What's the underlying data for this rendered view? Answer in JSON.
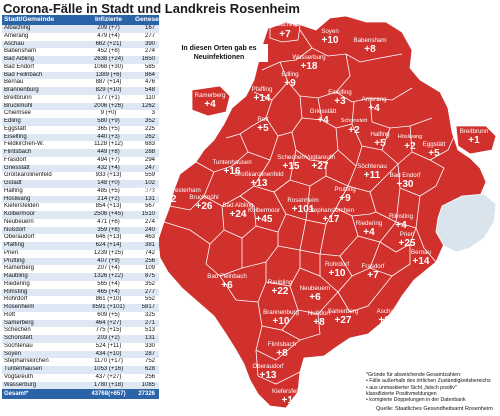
{
  "title": "Corona-Fälle in Stadt und Landkreis Rosenheim",
  "table": {
    "headers": [
      "Stadt/Gemeinde",
      "Infizierte",
      "Genesene"
    ],
    "rows": [
      [
        "Albaching",
        "209 (+7)",
        "167"
      ],
      [
        "Amerang",
        "479 (+4)",
        "277"
      ],
      [
        "Aschau",
        "662 (+21)",
        "390"
      ],
      [
        "Babensham",
        "452 (+8)",
        "274"
      ],
      [
        "Bad Aibling",
        "2638 (+24)",
        "1650"
      ],
      [
        "Bad Endorf",
        "1068 (+30)",
        "585"
      ],
      [
        "Bad Feilnbach",
        "1389 (+6)",
        "864"
      ],
      [
        "Bernau",
        "887 (+14)",
        "476"
      ],
      [
        "Brannenburg",
        "829 (+10)",
        "548"
      ],
      [
        "Breitbrunn",
        "177 (+1)",
        "110"
      ],
      [
        "Bruckmühl",
        "2006 (+26)",
        "1262"
      ],
      [
        "Chiemsee",
        "9 (+0)",
        "3"
      ],
      [
        "Edling",
        "580 (+9)",
        "352"
      ],
      [
        "Eggstätt",
        "365 (+5)",
        "225"
      ],
      [
        "Eiselfing",
        "440 (+3)",
        "262"
      ],
      [
        "Feldkirchen-W.",
        "1128 (+12)",
        "683"
      ],
      [
        "Flintsbach",
        "449 (+8)",
        "288"
      ],
      [
        "Frasdorf",
        "494 (+7)",
        "294"
      ],
      [
        "Griesstätt",
        "432 (+4)",
        "247"
      ],
      [
        "Großkarolinenfeld",
        "933 (+13)",
        "559"
      ],
      [
        "Gstadt",
        "148 (+0)",
        "102"
      ],
      [
        "Halfing",
        "485 (+5)",
        "273"
      ],
      [
        "Höslwang",
        "214 (+2)",
        "131"
      ],
      [
        "Kiefersfelden",
        "854 (+13)",
        "567"
      ],
      [
        "Kolbermoor",
        "2506 (+45)",
        "1510"
      ],
      [
        "Neubeuern",
        "471 (+6)",
        "274"
      ],
      [
        "Nußdorf",
        "359 (+8)",
        "240"
      ],
      [
        "Oberaudorf",
        "646 (+13)",
        "463"
      ],
      [
        "Pfaffing",
        "624 (+14)",
        "381"
      ],
      [
        "Prien",
        "1239 (+25)",
        "742"
      ],
      [
        "Prutting",
        "407 (+9)",
        "256"
      ],
      [
        "Ramerberg",
        "207 (+4)",
        "109"
      ],
      [
        "Raubling",
        "1326 (+22)",
        "875"
      ],
      [
        "Riedering",
        "565 (+4)",
        "352"
      ],
      [
        "Rimsting",
        "465 (+4)",
        "277"
      ],
      [
        "Rohrdorf",
        "861 (+10)",
        "552"
      ],
      [
        "Rosenheim",
        "8591 (+101)",
        "5817"
      ],
      [
        "Rott",
        "609 (+5)",
        "325"
      ],
      [
        "Samerberg",
        "464 (+27)",
        "271"
      ],
      [
        "Schechen",
        "775 (+15)",
        "513"
      ],
      [
        "Schonstett",
        "203 (+2)",
        "131"
      ],
      [
        "Söchtenau",
        "524 (+11)",
        "330"
      ],
      [
        "Soyen",
        "434 (+10)",
        "287"
      ],
      [
        "Stephanskirchen",
        "1170 (+17)",
        "752"
      ],
      [
        "Tuntenhausen",
        "1053 (+16)",
        "628"
      ],
      [
        "Vogtareuth",
        "437 (+27)",
        "256"
      ],
      [
        "Wasserburg",
        "1780 (+18)",
        "1085"
      ]
    ],
    "total": [
      "Gesamt*",
      "43768(+657)",
      "27326"
    ]
  },
  "callout": "In diesen Orten gab es Neuinfektionen",
  "notes": [
    "*Gründe für abweichende Gesamtzahlen:",
    "• Fälle außerhalb des örtlichen Zuständigkeitsbereichs",
    "• aus unmaskierter Sicht „falsch positiv\"",
    "  klassifizierte Positivmeldungen",
    "• korrigierte Doppelungen in der Datenbank"
  ],
  "credit": "Quelle: Staatliches Gesundheitsamt Rosenheim",
  "labels": {
    "albaching": {
      "name": "Albaching",
      "cnt": "+7"
    },
    "soyen": {
      "name": "Soyen",
      "cnt": "+10"
    },
    "babensham": {
      "name": "Babensham",
      "cnt": "+8"
    },
    "wasserburg": {
      "name": "Wasserburg",
      "cnt": "+18"
    },
    "edling": {
      "name": "Edling",
      "cnt": "+9"
    },
    "pfaffing": {
      "name": "Pfaffing",
      "cnt": "+14"
    },
    "eiselfing": {
      "name": "Eiselfing",
      "cnt": "+3"
    },
    "amerang": {
      "name": "Amerang",
      "cnt": "+4"
    },
    "ramerberg": {
      "name": "Ramerberg",
      "cnt": "+4"
    },
    "rott": {
      "name": "Rott",
      "cnt": "+5"
    },
    "griesstaett": {
      "name": "Griesstätt",
      "cnt": "+4"
    },
    "schonstett": {
      "name": "Schonstett",
      "cnt": "+2"
    },
    "halfing": {
      "name": "Halfing",
      "cnt": "+5"
    },
    "hoeslwang": {
      "name": "Höslwang",
      "cnt": "+2"
    },
    "eggstaett": {
      "name": "Eggstätt",
      "cnt": "+5"
    },
    "breitbrunn": {
      "name": "Breitbrunn",
      "cnt": "+1"
    },
    "tuntenhausen": {
      "name": "Tuntenhausen",
      "cnt": "+16"
    },
    "schechen": {
      "name": "Schechen",
      "cnt": "+15"
    },
    "vogtareuth": {
      "name": "Vogtareuth",
      "cnt": "+27"
    },
    "soechtenau": {
      "name": "Söchtenau",
      "cnt": "+11"
    },
    "badendorf": {
      "name": "Bad Endorf",
      "cnt": "+30"
    },
    "feldkirchen": {
      "name": "Feldkirchen-Westerham",
      "cnt": "+12"
    },
    "bruckmuehl": {
      "name": "Bruckmühl",
      "cnt": "+26"
    },
    "grosskarolinenfeld": {
      "name": "Großkarolinenfeld",
      "cnt": "+13"
    },
    "badaibling": {
      "name": "Bad Aibling",
      "cnt": "+24"
    },
    "kolbermoor": {
      "name": "Kolbermoor",
      "cnt": "+45"
    },
    "rosenheim": {
      "name": "Rosenheim",
      "cnt": "+101"
    },
    "stephanskirchen": {
      "name": "Stephanskirchen",
      "cnt": "+17"
    },
    "prutting": {
      "name": "Prutting",
      "cnt": "+9"
    },
    "riedering": {
      "name": "Riedering",
      "cnt": "+4"
    },
    "rimsting": {
      "name": "Rimsting",
      "cnt": "+4"
    },
    "prien": {
      "name": "Prien",
      "cnt": "+25"
    },
    "bernau": {
      "name": "Bernau",
      "cnt": "+14"
    },
    "badfeilnbach": {
      "name": "Bad Feilnbach",
      "cnt": "+6"
    },
    "raubling": {
      "name": "Raubling",
      "cnt": "+22"
    },
    "neubeuern": {
      "name": "Neubeuern",
      "cnt": "+6"
    },
    "rohrdorf": {
      "name": "Rohrdorf",
      "cnt": "+10"
    },
    "samerberg": {
      "name": "Samerberg",
      "cnt": "+27"
    },
    "frasdorf": {
      "name": "Frasdorf",
      "cnt": "+7"
    },
    "aschau": {
      "name": "Aschau",
      "cnt": "+21"
    },
    "brannenburg": {
      "name": "Brannenburg",
      "cnt": "+10"
    },
    "nussdorf": {
      "name": "Nußdorf",
      "cnt": "+8"
    },
    "flintsbach": {
      "name": "Flintsbach",
      "cnt": "+8"
    },
    "oberaudorf": {
      "name": "Oberaudorf",
      "cnt": "+13"
    },
    "kiefersfelden": {
      "name": "Kiefersfelden",
      "cnt": "+13"
    }
  },
  "colors": {
    "region": "#d0312d",
    "border": "#ffffff",
    "lake": "#d9e4ec",
    "table_header": "#2b63a8"
  }
}
